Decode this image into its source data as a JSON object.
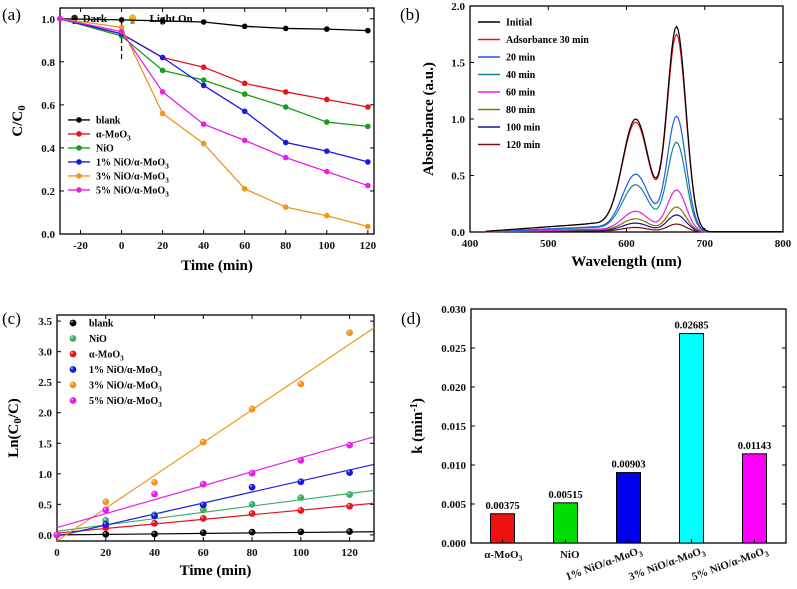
{
  "chart_data": [
    {
      "panel": "(a)",
      "type": "line",
      "xlabel": "Time (min)",
      "ylabel": "C/C0",
      "xlim": [
        -30,
        123
      ],
      "ylim": [
        0.0,
        1.05
      ],
      "xticks": [
        -20,
        0,
        20,
        40,
        60,
        80,
        100,
        120
      ],
      "yticks": [
        0.0,
        0.2,
        0.4,
        0.6,
        0.8,
        1.0
      ],
      "annotations": {
        "dark": "Dark",
        "light": "Light On"
      },
      "series": [
        {
          "name": "blank",
          "color": "#000000",
          "x": [
            -30,
            0,
            20,
            40,
            60,
            80,
            100,
            120
          ],
          "y": [
            1.0,
            0.995,
            0.99,
            0.985,
            0.965,
            0.955,
            0.952,
            0.945
          ]
        },
        {
          "name": "α-MoO3",
          "color": "#e8141c",
          "x": [
            -30,
            0,
            20,
            40,
            60,
            80,
            100,
            120
          ],
          "y": [
            1.0,
            0.93,
            0.82,
            0.775,
            0.7,
            0.66,
            0.625,
            0.59
          ]
        },
        {
          "name": "NiO",
          "color": "#1a9d1a",
          "x": [
            -30,
            0,
            20,
            40,
            60,
            80,
            100,
            120
          ],
          "y": [
            1.0,
            0.92,
            0.76,
            0.715,
            0.65,
            0.59,
            0.52,
            0.5
          ]
        },
        {
          "name": "1% NiO/α-MoO3",
          "color": "#1a1adc",
          "x": [
            -30,
            0,
            20,
            40,
            60,
            80,
            100,
            120
          ],
          "y": [
            1.0,
            0.93,
            0.82,
            0.69,
            0.57,
            0.425,
            0.385,
            0.335
          ]
        },
        {
          "name": "3% NiO/α-MoO3",
          "color": "#f0951e",
          "x": [
            -30,
            0,
            20,
            40,
            60,
            80,
            100,
            120
          ],
          "y": [
            1.0,
            0.96,
            0.56,
            0.42,
            0.21,
            0.125,
            0.085,
            0.035
          ]
        },
        {
          "name": "5% NiO/α-MoO3",
          "color": "#e61ee6",
          "x": [
            -30,
            0,
            20,
            40,
            60,
            80,
            100,
            120
          ],
          "y": [
            1.0,
            0.94,
            0.66,
            0.51,
            0.435,
            0.355,
            0.29,
            0.225
          ]
        }
      ]
    },
    {
      "panel": "(b)",
      "type": "line",
      "xlabel": "Wavelength (nm)",
      "ylabel": "Absorbance (a.u.)",
      "xlim": [
        400,
        800
      ],
      "ylim": [
        0.0,
        2.0
      ],
      "xticks": [
        400,
        500,
        600,
        700,
        800
      ],
      "yticks": [
        0.0,
        0.5,
        1.0,
        1.5,
        2.0
      ],
      "series": [
        {
          "name": "Initial",
          "color": "#000000",
          "peak": 1.81,
          "shoulder": 1.06,
          "base": 0.075
        },
        {
          "name": "Adsorbance 30 min",
          "color": "#e8141c",
          "peak": 1.74,
          "shoulder": 1.03,
          "base": 0.075
        },
        {
          "name": "20 min",
          "color": "#1a5ce8",
          "peak": 1.02,
          "shoulder": 0.54,
          "base": 0.045
        },
        {
          "name": "40 min",
          "color": "#14878a",
          "peak": 0.79,
          "shoulder": 0.44,
          "base": 0.04
        },
        {
          "name": "60 min",
          "color": "#e61ee6",
          "peak": 0.37,
          "shoulder": 0.19,
          "base": 0.025
        },
        {
          "name": "80 min",
          "color": "#7a7a00",
          "peak": 0.22,
          "shoulder": 0.12,
          "base": 0.02
        },
        {
          "name": "100 min",
          "color": "#141496",
          "peak": 0.15,
          "shoulder": 0.08,
          "base": 0.015
        },
        {
          "name": "120 min",
          "color": "#7a0e14",
          "peak": 0.07,
          "shoulder": 0.04,
          "base": 0.01
        }
      ]
    },
    {
      "panel": "(c)",
      "type": "scatter",
      "xlabel": "Time (min)",
      "ylabel": "Ln(C0/C)",
      "xlim": [
        0,
        130
      ],
      "ylim": [
        -0.1,
        3.6
      ],
      "xticks": [
        0,
        20,
        40,
        60,
        80,
        100,
        120
      ],
      "yticks": [
        0.0,
        0.5,
        1.0,
        1.5,
        2.0,
        2.5,
        3.0,
        3.5
      ],
      "series": [
        {
          "name": "blank",
          "color": "#000000",
          "x": [
            0,
            20,
            40,
            60,
            80,
            100,
            120
          ],
          "y": [
            0.0,
            0.01,
            0.015,
            0.035,
            0.045,
            0.05,
            0.055
          ],
          "fit": {
            "slope": 0.0004,
            "intercept": 0.0
          }
        },
        {
          "name": "NiO",
          "color": "#3fae6a",
          "x": [
            0,
            20,
            40,
            60,
            80,
            100,
            120
          ],
          "y": [
            0.0,
            0.24,
            0.33,
            0.41,
            0.5,
            0.61,
            0.66
          ],
          "fit": {
            "slope": 0.00515,
            "intercept": 0.06
          }
        },
        {
          "name": "α-MoO3",
          "color": "#e8141c",
          "x": [
            0,
            20,
            40,
            60,
            80,
            100,
            120
          ],
          "y": [
            0.0,
            0.12,
            0.19,
            0.27,
            0.35,
            0.4,
            0.47
          ],
          "fit": {
            "slope": 0.00375,
            "intercept": 0.03
          }
        },
        {
          "name": "1% NiO/α-MoO3",
          "color": "#1a1adc",
          "x": [
            0,
            20,
            40,
            60,
            80,
            100,
            120
          ],
          "y": [
            0.0,
            0.17,
            0.31,
            0.49,
            0.78,
            0.87,
            1.02
          ],
          "fit": {
            "slope": 0.00903,
            "intercept": -0.02
          }
        },
        {
          "name": "3% NiO/α-MoO3",
          "color": "#f0951e",
          "x": [
            0,
            20,
            40,
            60,
            80,
            100,
            120
          ],
          "y": [
            0.0,
            0.54,
            0.86,
            1.52,
            2.06,
            2.47,
            3.31
          ],
          "fit": {
            "slope": 0.02685,
            "intercept": -0.1
          }
        },
        {
          "name": "5% NiO/α-MoO3",
          "color": "#e61ee6",
          "x": [
            0,
            20,
            40,
            60,
            80,
            100,
            120
          ],
          "y": [
            0.0,
            0.41,
            0.67,
            0.83,
            1.01,
            1.22,
            1.47
          ],
          "fit": {
            "slope": 0.01143,
            "intercept": 0.12
          }
        }
      ]
    },
    {
      "panel": "(d)",
      "type": "bar",
      "ylabel": "k (min-1)",
      "ylim": [
        0.0,
        0.03
      ],
      "yticks": [
        0.0,
        0.005,
        0.01,
        0.015,
        0.02,
        0.025,
        0.03
      ],
      "ytick_labels": [
        "0.000",
        "0.005",
        "0.010",
        "0.015",
        "0.020",
        "0.025",
        "0.030"
      ],
      "categories": [
        "α-MoO3",
        "NiO",
        "1% NiO/α-MoO3",
        "3% NiO/α-MoO3",
        "5% NiO/α-MoO3"
      ],
      "values": [
        0.00375,
        0.00515,
        0.00903,
        0.02685,
        0.01143
      ],
      "value_labels": [
        "0.00375",
        "0.00515",
        "0.00903",
        "0.02685",
        "0.01143"
      ],
      "colors": [
        "#ee1111",
        "#00dd00",
        "#0000ee",
        "#00ffff",
        "#ff00ff"
      ]
    }
  ]
}
